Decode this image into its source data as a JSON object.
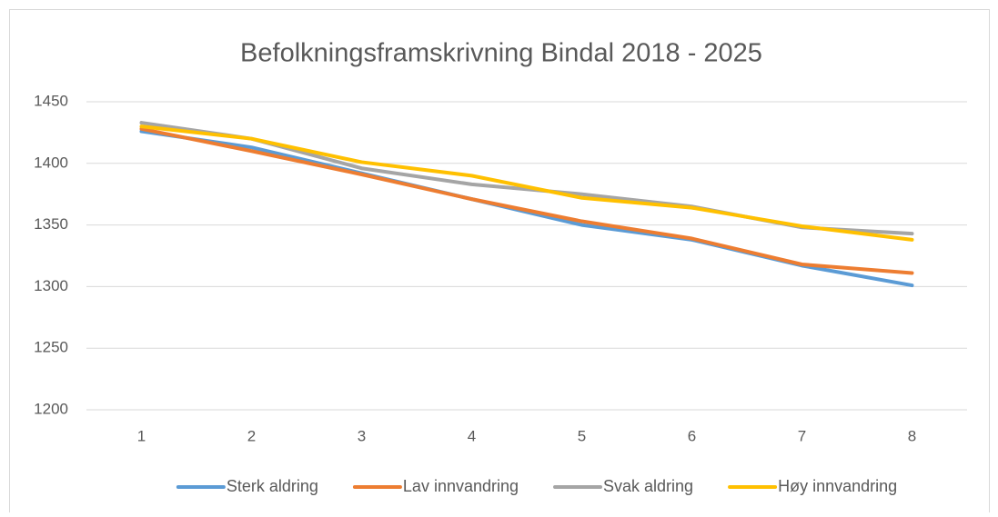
{
  "chart_data": {
    "type": "line",
    "title": "Befolkningsframskrivning Bindal 2018 - 2025",
    "categories": [
      "1",
      "2",
      "3",
      "4",
      "5",
      "6",
      "7",
      "8"
    ],
    "series": [
      {
        "name": "Sterk aldring",
        "color": "#5b9bd5",
        "values": [
          1426,
          1413,
          1392,
          1371,
          1350,
          1338,
          1317,
          1301
        ]
      },
      {
        "name": "Lav innvandring",
        "color": "#ed7d31",
        "values": [
          1428,
          1410,
          1391,
          1371,
          1353,
          1339,
          1318,
          1311
        ]
      },
      {
        "name": "Svak aldring",
        "color": "#a5a5a5",
        "values": [
          1433,
          1420,
          1396,
          1383,
          1375,
          1365,
          1348,
          1343
        ]
      },
      {
        "name": "Høy innvandring",
        "color": "#ffc000",
        "values": [
          1430,
          1420,
          1401,
          1390,
          1372,
          1364,
          1349,
          1338
        ]
      }
    ],
    "ylim": [
      1200,
      1450
    ],
    "yticks": [
      1200,
      1250,
      1300,
      1350,
      1400,
      1450
    ],
    "grid": true,
    "legend": "bottom"
  }
}
